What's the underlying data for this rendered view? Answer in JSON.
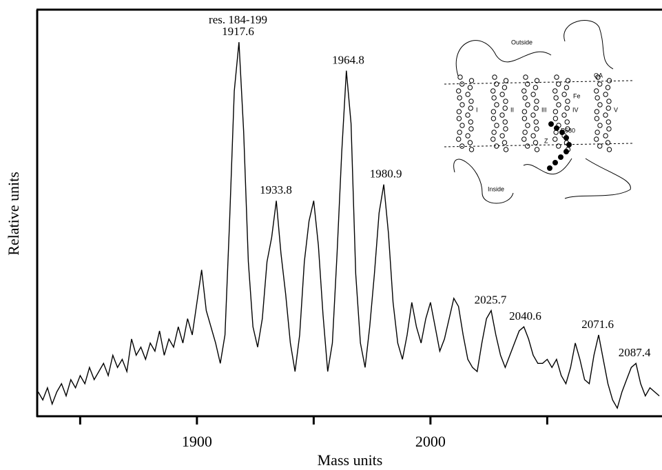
{
  "chart_data": {
    "type": "line",
    "xlabel": "Mass units",
    "ylabel": "Relative units",
    "xlim": [
      1831.6,
      2099.1
    ],
    "ylim": [
      0,
      100
    ],
    "xticks": [
      {
        "value": 1850,
        "label": null
      },
      1900,
      {
        "value": 1950,
        "label": null
      },
      2000,
      {
        "value": 2050,
        "label": null
      }
    ],
    "color": "#000000",
    "x": [
      1832,
      1834,
      1836,
      1838,
      1840,
      1842,
      1844,
      1846,
      1848,
      1850,
      1852,
      1854,
      1856,
      1858,
      1860,
      1862,
      1864,
      1866,
      1868,
      1870,
      1872,
      1874,
      1876,
      1878,
      1880,
      1882,
      1884,
      1886,
      1888,
      1890,
      1892,
      1894,
      1896,
      1898,
      1900,
      1902,
      1904,
      1906,
      1908,
      1910,
      1912,
      1914,
      1916,
      1918,
      1920,
      1922,
      1924,
      1926,
      1928,
      1930,
      1932,
      1934,
      1936,
      1938,
      1940,
      1942,
      1944,
      1946,
      1948,
      1950,
      1952,
      1954,
      1956,
      1958,
      1960,
      1962,
      1964,
      1966,
      1968,
      1970,
      1972,
      1974,
      1976,
      1978,
      1980,
      1982,
      1984,
      1986,
      1988,
      1990,
      1992,
      1994,
      1996,
      1998,
      2000,
      2002,
      2004,
      2006,
      2008,
      2010,
      2012,
      2014,
      2016,
      2018,
      2020,
      2022,
      2024,
      2026,
      2028,
      2030,
      2032,
      2034,
      2036,
      2038,
      2040,
      2042,
      2044,
      2046,
      2048,
      2050,
      2052,
      2054,
      2056,
      2058,
      2060,
      2062,
      2064,
      2066,
      2068,
      2070,
      2072,
      2074,
      2076,
      2078,
      2080,
      2082,
      2084,
      2086,
      2088,
      2090,
      2092,
      2094,
      2096,
      2098
    ],
    "values": [
      6,
      4,
      7,
      3,
      6,
      8,
      5,
      9,
      7,
      10,
      8,
      12,
      9,
      11,
      13,
      10,
      15,
      12,
      14,
      11,
      19,
      15,
      17,
      14,
      18,
      16,
      21,
      15,
      19,
      17,
      22,
      18,
      24,
      20,
      28,
      36,
      26,
      22,
      18,
      13,
      20,
      48,
      80,
      92,
      70,
      38,
      22,
      17,
      24,
      38,
      44,
      53,
      40,
      30,
      18,
      11,
      20,
      38,
      48,
      53,
      42,
      25,
      11,
      18,
      40,
      65,
      85,
      72,
      35,
      18,
      12,
      22,
      35,
      50,
      57,
      45,
      28,
      18,
      14,
      20,
      28,
      22,
      18,
      24,
      28,
      22,
      16,
      19,
      24,
      29,
      27,
      20,
      14,
      12,
      11,
      18,
      24,
      26,
      20,
      15,
      12,
      15,
      18,
      21,
      22,
      19,
      15,
      13,
      13,
      14,
      12,
      14,
      10,
      8,
      12,
      18,
      14,
      9,
      8,
      15,
      20,
      14,
      8,
      4,
      2,
      6,
      9,
      12,
      13,
      8,
      5,
      7,
      6,
      5
    ],
    "annotations": [
      {
        "x": 1917.6,
        "y": 92,
        "label": "1917.6",
        "note": "res. 184-199"
      },
      {
        "x": 1933.8,
        "y": 53,
        "label": "1933.8"
      },
      {
        "x": 1964.8,
        "y": 85,
        "label": "1964.8"
      },
      {
        "x": 1980.9,
        "y": 57,
        "label": "1980.9"
      },
      {
        "x": 2025.7,
        "y": 26,
        "label": "2025.7"
      },
      {
        "x": 2040.6,
        "y": 22,
        "label": "2040.6"
      },
      {
        "x": 2071.6,
        "y": 20,
        "label": "2071.6"
      },
      {
        "x": 2087.4,
        "y": 13,
        "label": "2087.4"
      }
    ]
  },
  "inset": {
    "outside": "Outside",
    "inside": "Inside",
    "fe": "Fe",
    "p680": "P680",
    "qa": "QA",
    "z": "Z",
    "helices": [
      "I",
      "II",
      "III",
      "IV",
      "V"
    ]
  }
}
